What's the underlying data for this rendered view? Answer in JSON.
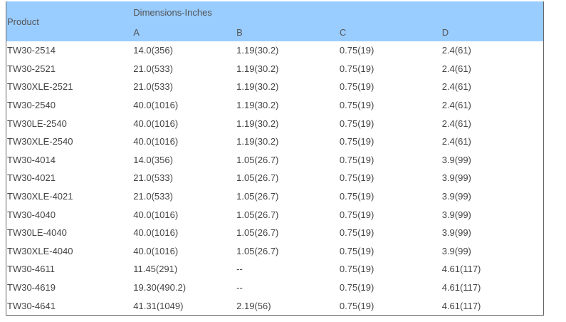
{
  "table": {
    "product_header": "Product",
    "group_header": "Dimensions-Inches",
    "columns": [
      "A",
      "B",
      "C",
      "D"
    ],
    "header_color": "#99ccff",
    "rows": [
      [
        "TW30-2514",
        "14.0(356)",
        "1.19(30.2)",
        "0.75(19)",
        "2.4(61)"
      ],
      [
        "TW30-2521",
        "21.0(533)",
        "1.19(30.2)",
        "0.75(19)",
        "2.4(61)"
      ],
      [
        "TW30XLE-2521",
        "21.0(533)",
        "1.19(30.2)",
        "0.75(19)",
        "2.4(61)"
      ],
      [
        "TW30-2540",
        "40.0(1016)",
        "1.19(30.2)",
        "0.75(19)",
        "2.4(61)"
      ],
      [
        "TW30LE-2540",
        "40.0(1016)",
        "1.19(30.2)",
        "0.75(19)",
        "2.4(61)"
      ],
      [
        "TW30XLE-2540",
        "40.0(1016)",
        "1.19(30.2)",
        "0.75(19)",
        "2.4(61)"
      ],
      [
        "TW30-4014",
        "14.0(356)",
        "1.05(26.7)",
        "0.75(19)",
        "3.9(99)"
      ],
      [
        "TW30-4021",
        "21.0(533)",
        "1.05(26.7)",
        "0.75(19)",
        "3.9(99)"
      ],
      [
        "TW30XLE-4021",
        "21.0(533)",
        "1.05(26.7)",
        "0.75(19)",
        "3.9(99)"
      ],
      [
        "TW30-4040",
        "40.0(1016)",
        "1.05(26.7)",
        "0.75(19)",
        "3.9(99)"
      ],
      [
        "TW30LE-4040",
        "40.0(1016)",
        "1.05(26.7)",
        "0.75(19)",
        "3.9(99)"
      ],
      [
        "TW30XLE-4040",
        "40.0(1016)",
        "1.05(26.7)",
        "0.75(19)",
        "3.9(99)"
      ],
      [
        "TW30-4611",
        "11.45(291)",
        "--",
        "0.75(19)",
        "4.61(117)"
      ],
      [
        "TW30-4619",
        "19.30(490.2)",
        "--",
        "0.75(19)",
        "4.61(117)"
      ],
      [
        "TW30-4641",
        "41.31(1049)",
        "2.19(56)",
        "0.75(19)",
        "4.61(117)"
      ]
    ]
  }
}
